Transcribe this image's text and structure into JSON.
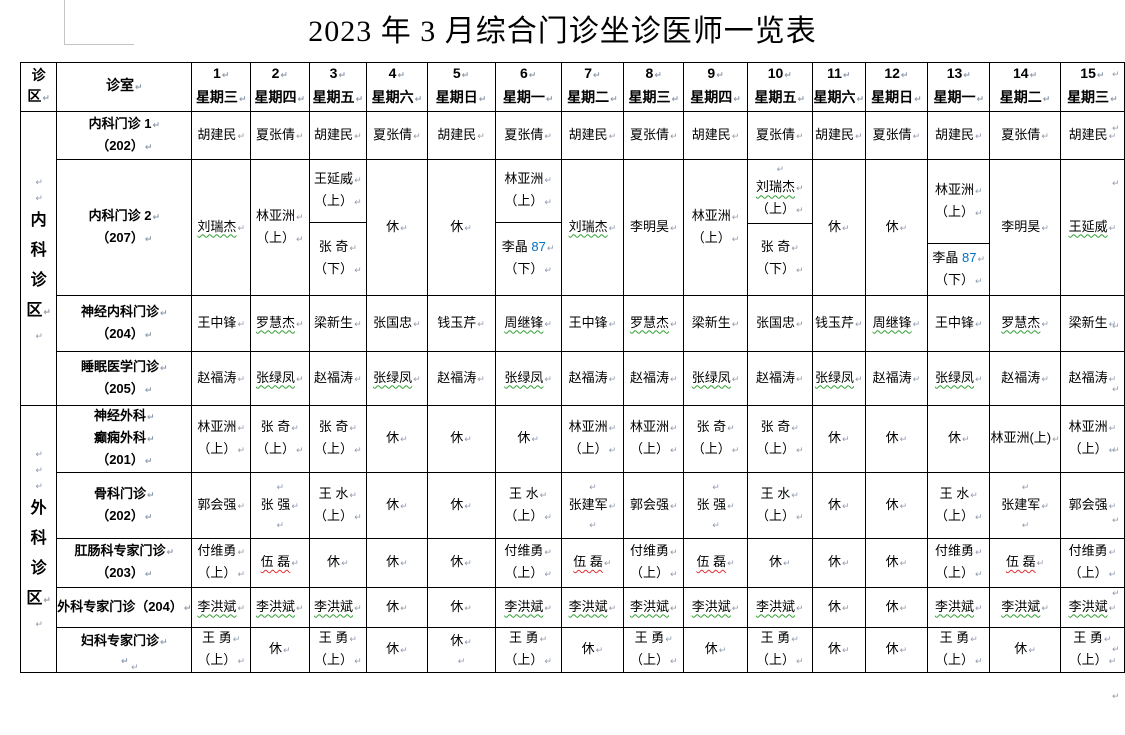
{
  "title": "2023 年 3 月综合门诊坐诊医师一览表",
  "mark": "↵",
  "colors": {
    "blue_text": "#0070C0",
    "spell_check_green": "#2f9e2f",
    "spell_check_red": "#e03030",
    "grid": "#000000"
  },
  "header": {
    "area_label": [
      "诊",
      "区"
    ],
    "room_label": "诊室",
    "days": [
      {
        "n": "1",
        "w": "星期三"
      },
      {
        "n": "2",
        "w": "星期四"
      },
      {
        "n": "3",
        "w": "星期五"
      },
      {
        "n": "4",
        "w": "星期六"
      },
      {
        "n": "5",
        "w": "星期日"
      },
      {
        "n": "6",
        "w": "星期一"
      },
      {
        "n": "7",
        "w": "星期二"
      },
      {
        "n": "8",
        "w": "星期三"
      },
      {
        "n": "9",
        "w": "星期四"
      },
      {
        "n": "10",
        "w": "星期五"
      },
      {
        "n": "11",
        "w": "星期六"
      },
      {
        "n": "12",
        "w": "星期日"
      },
      {
        "n": "13",
        "w": "星期一"
      },
      {
        "n": "14",
        "w": "星期二"
      },
      {
        "n": "15",
        "w": "星期三"
      }
    ]
  },
  "rest_label": "休",
  "groups": [
    {
      "area_label": [
        "内",
        "科",
        "诊",
        "区"
      ],
      "marks_above": 2,
      "marks_below": 1,
      "rows": [
        {
          "room": [
            "内科门诊 1",
            "（202）"
          ],
          "cells": [
            {
              "n": "胡建民"
            },
            {
              "n": "夏张倩"
            },
            {
              "n": "胡建民"
            },
            {
              "n": "夏张倩"
            },
            {
              "n": "胡建民"
            },
            {
              "n": "夏张倩"
            },
            {
              "n": "胡建民"
            },
            {
              "n": "夏张倩"
            },
            {
              "n": "胡建民"
            },
            {
              "n": "夏张倩"
            },
            {
              "n": "胡建民"
            },
            {
              "n": "夏张倩"
            },
            {
              "n": "胡建民"
            },
            {
              "n": "夏张倩"
            },
            {
              "n": "胡建民"
            }
          ]
        },
        {
          "room": [
            "内科门诊 2",
            "（207）"
          ],
          "cells": [
            {
              "n": "刘瑞杰",
              "u": "g"
            },
            {
              "n": "林亚洲",
              "s": "（上）"
            },
            {
              "split": [
                {
                  "n": "王延威",
                  "s": "（上）"
                },
                {
                  "n": "张 奇",
                  "s": "（下）"
                }
              ],
              "ratio": 0.46
            },
            {
              "n": "休"
            },
            {
              "n": "休"
            },
            {
              "split": [
                {
                  "n": "林亚洲",
                  "s": "（上）"
                },
                {
                  "n": "李晶 ",
                  "n2": "87",
                  "s": "（下）"
                }
              ],
              "ratio": 0.46
            },
            {
              "n": "刘瑞杰",
              "u": "g"
            },
            {
              "n": "李明昊"
            },
            {
              "n": "林亚洲",
              "s": "（上）"
            },
            {
              "split": [
                {
                  "n": "刘瑞杰",
                  "s": "（上）",
                  "u": "g",
                  "pp": true
                },
                {
                  "n": "张 奇",
                  "s": "（下）"
                }
              ],
              "ratio": 0.47
            },
            {
              "n": "休"
            },
            {
              "n": "休"
            },
            {
              "split": [
                {
                  "n": "林亚洲",
                  "s": "（上）"
                },
                {
                  "n": "李晶 ",
                  "n2": "87",
                  "s": "（下）"
                }
              ],
              "ratio": 0.62
            },
            {
              "n": "李明昊"
            },
            {
              "n": "王延威",
              "u": "g"
            }
          ]
        },
        {
          "room": [
            "神经内科门诊",
            "（204）"
          ],
          "cells": [
            {
              "n": "王中锋"
            },
            {
              "n": "罗慧杰",
              "u": "g"
            },
            {
              "n": "梁新生"
            },
            {
              "n": "张国忠"
            },
            {
              "n": "钱玉芹"
            },
            {
              "n": "周继锋",
              "u": "g"
            },
            {
              "n": "王中锋"
            },
            {
              "n": "罗慧杰",
              "u": "g"
            },
            {
              "n": "梁新生"
            },
            {
              "n": "张国忠"
            },
            {
              "n": "钱玉芹"
            },
            {
              "n": "周继锋",
              "u": "g"
            },
            {
              "n": "王中锋"
            },
            {
              "n": "罗慧杰",
              "u": "g"
            },
            {
              "n": "梁新生"
            }
          ]
        },
        {
          "room": [
            "睡眠医学门诊",
            "（205）"
          ],
          "cells": [
            {
              "n": "赵福涛"
            },
            {
              "n": "张绿凤",
              "u": "g"
            },
            {
              "n": "赵福涛"
            },
            {
              "n": "张绿凤",
              "u": "g"
            },
            {
              "n": "赵福涛"
            },
            {
              "n": "张绿凤",
              "u": "g"
            },
            {
              "n": "赵福涛"
            },
            {
              "n": "赵福涛"
            },
            {
              "n": "张绿凤",
              "u": "g"
            },
            {
              "n": "赵福涛"
            },
            {
              "n": "张绿凤",
              "u": "g"
            },
            {
              "n": "赵福涛"
            },
            {
              "n": "张绿凤",
              "u": "g"
            },
            {
              "n": "赵福涛"
            },
            {
              "n": "赵福涛"
            }
          ]
        }
      ]
    },
    {
      "area_label": [
        "外",
        "科",
        "诊",
        "区"
      ],
      "marks_above": 3,
      "marks_below": 1,
      "rows": [
        {
          "room": [
            "神经外科",
            "癫痫外科",
            "（201）"
          ],
          "cells": [
            {
              "n": "林亚洲",
              "s": "（上）"
            },
            {
              "n": "张 奇",
              "s": "（上）"
            },
            {
              "n": "张 奇",
              "s": "（上）"
            },
            {
              "n": "休"
            },
            {
              "n": "休"
            },
            {
              "n": "休"
            },
            {
              "n": "林亚洲",
              "s": "（上）"
            },
            {
              "n": "林亚洲",
              "s": "（上）"
            },
            {
              "n": "张 奇",
              "s": "（上）"
            },
            {
              "n": "张 奇",
              "s": "（上）"
            },
            {
              "n": "休"
            },
            {
              "n": "休"
            },
            {
              "n": "休"
            },
            {
              "n": "林亚洲(上)"
            },
            {
              "n": "林亚洲",
              "s": "（上）"
            }
          ]
        },
        {
          "room": [
            "骨科门诊",
            "（202）"
          ],
          "cells": [
            {
              "n": "郭会强"
            },
            {
              "n": "张 强",
              "pp": true,
              "pb": true
            },
            {
              "n": "王 水",
              "s": "（上）"
            },
            {
              "n": "休"
            },
            {
              "n": "休"
            },
            {
              "n": "王 水",
              "s": "（上）"
            },
            {
              "n": "张建军",
              "pp": true,
              "pb": true
            },
            {
              "n": "郭会强"
            },
            {
              "n": "张 强",
              "pp": true,
              "pb": true
            },
            {
              "n": "王 水",
              "s": "（上）"
            },
            {
              "n": "休"
            },
            {
              "n": "休"
            },
            {
              "n": "王 水",
              "s": "（上）"
            },
            {
              "n": "张建军",
              "pp": true,
              "pb": true
            },
            {
              "n": "郭会强"
            }
          ]
        },
        {
          "room": [
            "肛肠科专家门诊",
            "（203）"
          ],
          "cells": [
            {
              "n": "付维勇",
              "s": "（上）"
            },
            {
              "n": "伍 磊",
              "u": "r"
            },
            {
              "n": "休"
            },
            {
              "n": "休"
            },
            {
              "n": "休"
            },
            {
              "n": "付维勇",
              "s": "（上）"
            },
            {
              "n": "伍 磊",
              "u": "r"
            },
            {
              "n": "付维勇",
              "s": "（上）"
            },
            {
              "n": "伍 磊",
              "u": "r"
            },
            {
              "n": "休"
            },
            {
              "n": "休"
            },
            {
              "n": "休"
            },
            {
              "n": "付维勇",
              "s": "（上）"
            },
            {
              "n": "伍 磊",
              "u": "r"
            },
            {
              "n": "付维勇",
              "s": "（上）"
            }
          ]
        },
        {
          "room": [
            "外科专家门诊（204）"
          ],
          "cells": [
            {
              "n": "李洪斌",
              "u": "g"
            },
            {
              "n": "李洪斌",
              "u": "g"
            },
            {
              "n": "李洪斌",
              "u": "g"
            },
            {
              "n": "休"
            },
            {
              "n": "休"
            },
            {
              "n": "李洪斌",
              "u": "g"
            },
            {
              "n": "李洪斌",
              "u": "g"
            },
            {
              "n": "李洪斌",
              "u": "g"
            },
            {
              "n": "李洪斌",
              "u": "g"
            },
            {
              "n": "李洪斌",
              "u": "g"
            },
            {
              "n": "休"
            },
            {
              "n": "休"
            },
            {
              "n": "李洪斌",
              "u": "g"
            },
            {
              "n": "李洪斌",
              "u": "g"
            },
            {
              "n": "李洪斌",
              "u": "g"
            }
          ]
        },
        {
          "room": [
            "妇科专家门诊",
            ""
          ],
          "cells": [
            {
              "n": "王 勇",
              "s": "（上）"
            },
            {
              "n": "休"
            },
            {
              "n": "王 勇",
              "s": "（上）"
            },
            {
              "n": "休"
            },
            {
              "n": "休",
              "pb": true
            },
            {
              "n": "王 勇",
              "s": "（上）"
            },
            {
              "n": "休"
            },
            {
              "n": "王 勇",
              "s": "（上）"
            },
            {
              "n": "休"
            },
            {
              "n": "王 勇",
              "s": "（上）"
            },
            {
              "n": "休"
            },
            {
              "n": "休"
            },
            {
              "n": "王 勇",
              "s": "（上）"
            },
            {
              "n": "休"
            },
            {
              "n": "王 勇",
              "s": "（上）"
            }
          ]
        }
      ]
    }
  ]
}
